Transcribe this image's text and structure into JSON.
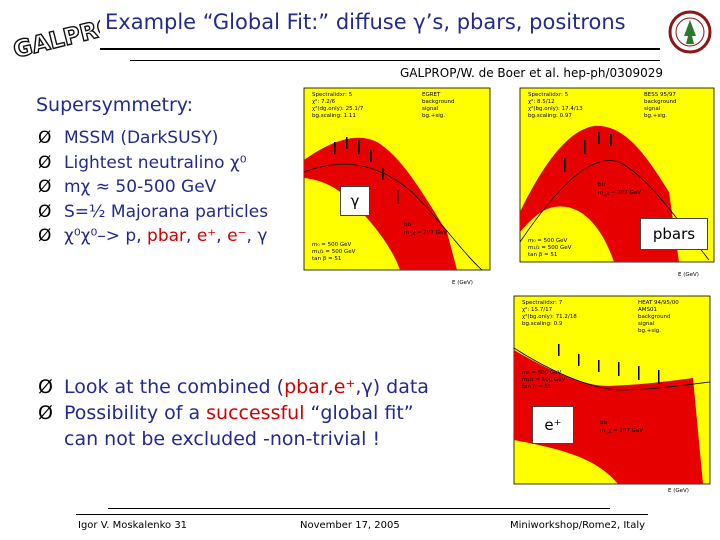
{
  "logo_text": "GALPROP",
  "title": "Example “Global Fit:” diffuse γ’s, pbars, positrons",
  "reference": "GALPROP/W. de Boer et al. hep-ph/0309029",
  "susy": {
    "heading": "Supersymmetry:",
    "items": [
      {
        "parts": [
          {
            "t": "MSSM (DarkSUSY)",
            "c": "blue"
          }
        ]
      },
      {
        "parts": [
          {
            "t": "Lightest neutralino χ⁰",
            "c": "blue"
          }
        ]
      },
      {
        "parts": [
          {
            "t": "mχ ≈ 50-500 GeV",
            "c": "blue"
          }
        ]
      },
      {
        "parts": [
          {
            "t": "S=½ Majorana particles",
            "c": "blue"
          }
        ]
      },
      {
        "parts": [
          {
            "t": "χ⁰χ⁰–> p, ",
            "c": "blue"
          },
          {
            "t": "pbar",
            "c": "red"
          },
          {
            "t": ", ",
            "c": "blue"
          },
          {
            "t": "e⁺",
            "c": "red"
          },
          {
            "t": ", ",
            "c": "blue"
          },
          {
            "t": "e⁻",
            "c": "red"
          },
          {
            "t": ", γ",
            "c": "blue"
          }
        ]
      }
    ]
  },
  "fit": {
    "items": [
      {
        "parts": [
          {
            "t": "Look at the combined (",
            "c": "blue"
          },
          {
            "t": "pbar",
            "c": "red"
          },
          {
            "t": ",",
            "c": "blue"
          },
          {
            "t": "e⁺",
            "c": "red"
          },
          {
            "t": ",γ) data",
            "c": "blue"
          }
        ]
      },
      {
        "parts": [
          {
            "t": "Possibility of a ",
            "c": "blue"
          },
          {
            "t": "successful",
            "c": "red"
          },
          {
            "t": " “global fit”",
            "c": "blue"
          }
        ]
      },
      {
        "parts": [
          {
            "t": "can not be excluded -non-trivial !",
            "c": "blue"
          }
        ],
        "indent": true
      }
    ]
  },
  "plots": {
    "gamma": {
      "tag": "γ",
      "axis_unit": "E (GeV)",
      "legend": [
        "EGRET",
        "background",
        "signal",
        "bg.+sig."
      ],
      "stats": [
        "Spectralidxr: 5",
        "χ²: 7.2/6",
        "χ²(dg.only): 25.1/7",
        "bg.scaling: 1.11"
      ],
      "params": [
        "m₀ = 500 GeV",
        "m₁/₂ = 500 GeV",
        "tan β = 51"
      ],
      "bb": "bb",
      "mchi": "m_χ = 207 GeV"
    },
    "pbar": {
      "tag": "pbars",
      "axis_unit": "E (GeV)",
      "legend": [
        "BESS 95/97",
        "background",
        "signal",
        "bg.+sig."
      ],
      "stats": [
        "Spectralidxr: 5",
        "χ²: 8.5/12",
        "χ²(bg.only): 17.4/13",
        "bg.scaling: 0.97"
      ],
      "params": [
        "m₀ = 500 GeV",
        "m₁/₂ = 500 GeV",
        "tan β = 51"
      ],
      "bb": "bb",
      "mchi": "m_χ = 207 GeV"
    },
    "positron": {
      "tag": "e⁺",
      "axis_unit": "E (GeV)",
      "legend": [
        "HEAT 94/95/00",
        "AMS01",
        "background",
        "signal",
        "bg.+sig."
      ],
      "stats": [
        "Spectralidxr: 7",
        "χ²: 15.7/17",
        "χ²(bg.only): 71.2/18",
        "bg.scaling: 0.9"
      ],
      "params": [
        "m₀ = 500 GeV",
        "m₁/₂ = 500 GeV",
        "tan β = 51"
      ],
      "bb": "bb",
      "mchi": "m_χ = 207 GeV"
    }
  },
  "footer": {
    "author": "Igor V. Moskalenko  31",
    "date": "November 17, 2005",
    "venue": "Miniworkshop/Rome2, Italy"
  },
  "colors": {
    "blue": "#222a8c",
    "red": "#d10000",
    "yellow": "#ffff00",
    "fill_red": "#e60000"
  }
}
